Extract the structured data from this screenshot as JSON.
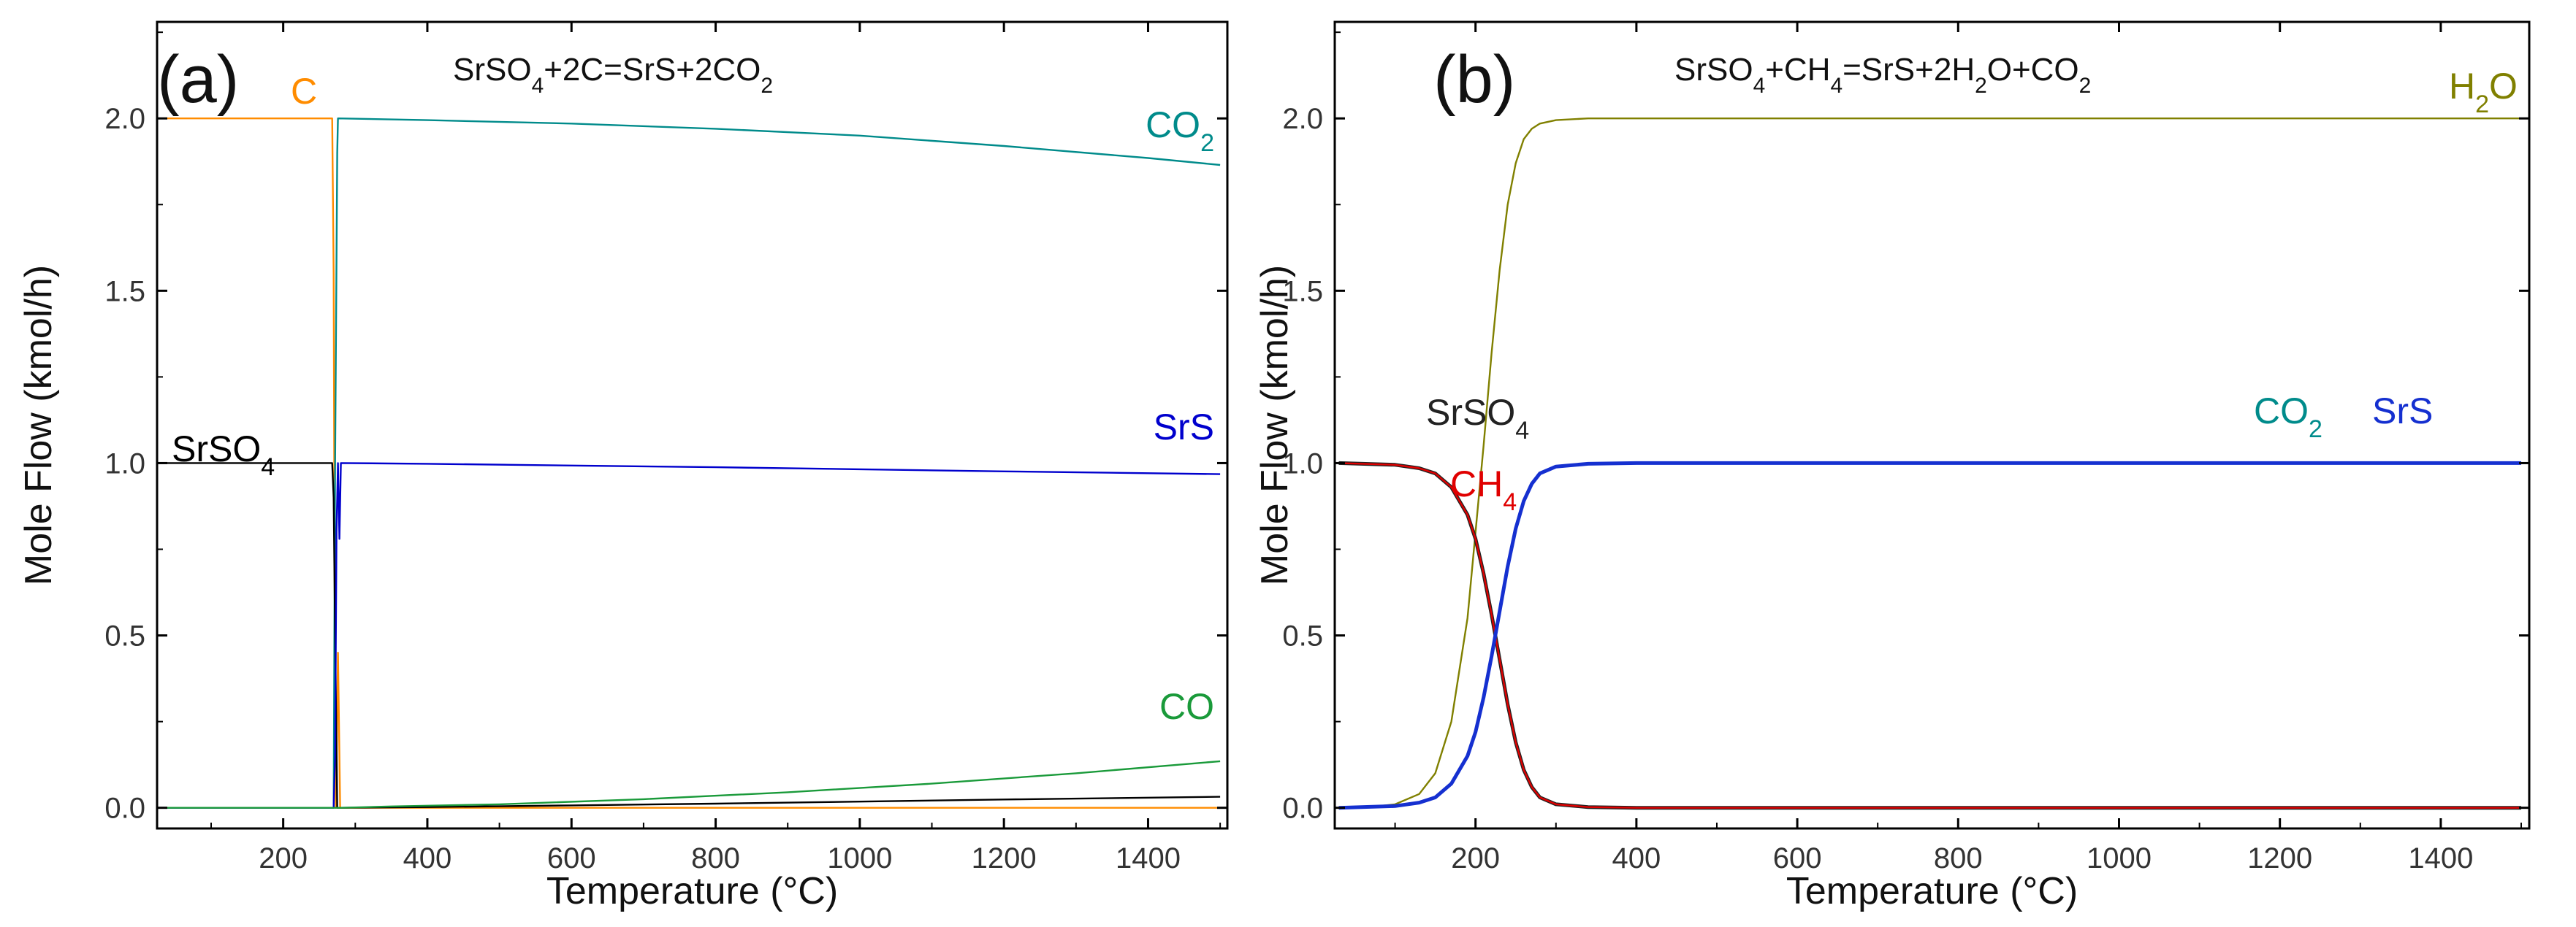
{
  "chart_data": [
    {
      "type": "line",
      "panel": "(a)",
      "title": "SrSO4+2C=SrS+2CO2",
      "title_parts": [
        {
          "t": "SrSO"
        },
        {
          "t": "4",
          "sub": true
        },
        {
          "t": "+2C=SrS+2CO"
        },
        {
          "t": "2",
          "sub": true
        }
      ],
      "xlabel": "Temperature (°C)",
      "ylabel": "Mole Flow (kmol/h)",
      "xlim": [
        25,
        1510
      ],
      "ylim": [
        -0.06,
        2.28
      ],
      "xticks": [
        200,
        400,
        600,
        800,
        1000,
        1200,
        1400
      ],
      "yticks": [
        0.0,
        0.5,
        1.0,
        1.5,
        2.0
      ],
      "ytick_labels": [
        "0.0",
        "0.5",
        "1.0",
        "1.5",
        "2.0"
      ],
      "series": [
        {
          "name": "C",
          "label_parts": [
            {
              "t": "C"
            }
          ],
          "color": "#ff8c00",
          "x": [
            25,
            268,
            270,
            272,
            273,
            276,
            279,
            350,
            600,
            1000,
            1500
          ],
          "y": [
            2.0,
            2.0,
            1.55,
            0.2,
            0.0,
            0.45,
            0.0,
            0.0,
            0.0,
            0.0,
            0.0
          ]
        },
        {
          "name": "CO2",
          "label_parts": [
            {
              "t": "CO"
            },
            {
              "t": "2",
              "sub": true
            }
          ],
          "color": "#008b8b",
          "x": [
            25,
            270,
            272,
            275,
            276,
            400,
            600,
            800,
            1000,
            1200,
            1400,
            1500
          ],
          "y": [
            0.0,
            0.0,
            1.0,
            1.9,
            2.0,
            1.995,
            1.985,
            1.97,
            1.95,
            1.92,
            1.885,
            1.865
          ]
        },
        {
          "name": "SrSO4",
          "label_parts": [
            {
              "t": "SrSO"
            },
            {
              "t": "4",
              "sub": true
            }
          ],
          "color": "#000000",
          "x": [
            25,
            268,
            270,
            272,
            275,
            278,
            400,
            600,
            800,
            1000,
            1200,
            1500
          ],
          "y": [
            1.0,
            1.0,
            0.9,
            0.5,
            0.0,
            0.0,
            0.002,
            0.007,
            0.012,
            0.018,
            0.024,
            0.032
          ]
        },
        {
          "name": "SrS",
          "label_parts": [
            {
              "t": "SrS"
            }
          ],
          "color": "#0000cd",
          "x": [
            25,
            270,
            272,
            274,
            276,
            278,
            280,
            400,
            600,
            800,
            1000,
            1200,
            1500
          ],
          "y": [
            0.0,
            0.0,
            0.15,
            0.8,
            1.0,
            0.78,
            1.0,
            0.998,
            0.993,
            0.988,
            0.982,
            0.976,
            0.968
          ]
        },
        {
          "name": "CO",
          "label_parts": [
            {
              "t": "CO"
            }
          ],
          "color": "#1a9a3a",
          "x": [
            25,
            270,
            280,
            350,
            500,
            700,
            900,
            1100,
            1300,
            1500
          ],
          "y": [
            0.0,
            0.0,
            0.0,
            0.004,
            0.01,
            0.025,
            0.045,
            0.07,
            0.1,
            0.135
          ]
        }
      ]
    },
    {
      "type": "line",
      "panel": "(b)",
      "title": "SrSO4+CH4=SrS+2H2O+CO2",
      "title_parts": [
        {
          "t": "SrSO"
        },
        {
          "t": "4",
          "sub": true
        },
        {
          "t": "+CH"
        },
        {
          "t": "4",
          "sub": true
        },
        {
          "t": "=SrS+2H"
        },
        {
          "t": "2",
          "sub": true
        },
        {
          "t": "O+CO"
        },
        {
          "t": "2",
          "sub": true
        }
      ],
      "xlabel": "Temperature (°C)",
      "ylabel": "Mole Flow (kmol/h)",
      "xlim": [
        25,
        1510
      ],
      "ylim": [
        -0.06,
        2.28
      ],
      "xticks": [
        200,
        400,
        600,
        800,
        1000,
        1200,
        1400
      ],
      "yticks": [
        0.0,
        0.5,
        1.0,
        1.5,
        2.0
      ],
      "ytick_labels": [
        "0.0",
        "0.5",
        "1.0",
        "1.5",
        "2.0"
      ],
      "series": [
        {
          "name": "H2O",
          "label_parts": [
            {
              "t": "H"
            },
            {
              "t": "2",
              "sub": true
            },
            {
              "t": "O"
            }
          ],
          "color": "#808000",
          "x": [
            30,
            60,
            100,
            130,
            150,
            170,
            190,
            200,
            210,
            220,
            230,
            240,
            250,
            260,
            270,
            280,
            300,
            340,
            400,
            800,
            1200,
            1500
          ],
          "y": [
            0.0,
            0.0,
            0.01,
            0.04,
            0.1,
            0.25,
            0.55,
            0.8,
            1.05,
            1.32,
            1.56,
            1.75,
            1.87,
            1.94,
            1.97,
            1.985,
            1.995,
            2.0,
            2.0,
            2.0,
            2.0,
            2.0
          ]
        },
        {
          "name": "SrSO4",
          "label_parts": [
            {
              "t": "SrSO"
            },
            {
              "t": "4",
              "sub": true
            }
          ],
          "color": "#222222",
          "x": [
            30,
            100,
            130,
            150,
            170,
            190,
            200,
            210,
            220,
            230,
            240,
            250,
            260,
            270,
            280,
            300,
            340,
            400,
            800,
            1200,
            1500
          ],
          "y": [
            1.0,
            0.995,
            0.985,
            0.97,
            0.93,
            0.85,
            0.78,
            0.68,
            0.56,
            0.43,
            0.3,
            0.19,
            0.11,
            0.06,
            0.03,
            0.01,
            0.002,
            0.0,
            0.0,
            0.0,
            0.0
          ]
        },
        {
          "name": "CH4",
          "label_parts": [
            {
              "t": "CH"
            },
            {
              "t": "4",
              "sub": true
            }
          ],
          "color": "#e00000",
          "x": [
            30,
            100,
            130,
            150,
            170,
            190,
            200,
            210,
            220,
            230,
            240,
            250,
            260,
            270,
            280,
            300,
            340,
            400,
            800,
            1200,
            1500
          ],
          "y": [
            1.0,
            0.995,
            0.985,
            0.97,
            0.93,
            0.85,
            0.78,
            0.68,
            0.56,
            0.43,
            0.3,
            0.19,
            0.11,
            0.06,
            0.03,
            0.01,
            0.002,
            0.0,
            0.0,
            0.0,
            0.0
          ]
        },
        {
          "name": "CO2",
          "label_parts": [
            {
              "t": "CO"
            },
            {
              "t": "2",
              "sub": true
            }
          ],
          "color": "#008b8b",
          "x": [
            30,
            100,
            130,
            150,
            170,
            190,
            200,
            210,
            220,
            230,
            240,
            250,
            260,
            270,
            280,
            300,
            340,
            400,
            800,
            1200,
            1500
          ],
          "y": [
            0.0,
            0.005,
            0.015,
            0.03,
            0.07,
            0.15,
            0.22,
            0.32,
            0.44,
            0.57,
            0.7,
            0.81,
            0.89,
            0.94,
            0.97,
            0.99,
            0.998,
            1.0,
            1.0,
            1.0,
            1.0
          ]
        },
        {
          "name": "SrS",
          "label_parts": [
            {
              "t": "SrS"
            }
          ],
          "color": "#1530d0",
          "x": [
            30,
            100,
            130,
            150,
            170,
            190,
            200,
            210,
            220,
            230,
            240,
            250,
            260,
            270,
            280,
            300,
            340,
            400,
            800,
            1200,
            1500
          ],
          "y": [
            0.0,
            0.005,
            0.015,
            0.03,
            0.07,
            0.15,
            0.22,
            0.32,
            0.44,
            0.57,
            0.7,
            0.81,
            0.89,
            0.94,
            0.97,
            0.99,
            0.998,
            1.0,
            1.0,
            1.0,
            1.0
          ]
        }
      ]
    }
  ]
}
